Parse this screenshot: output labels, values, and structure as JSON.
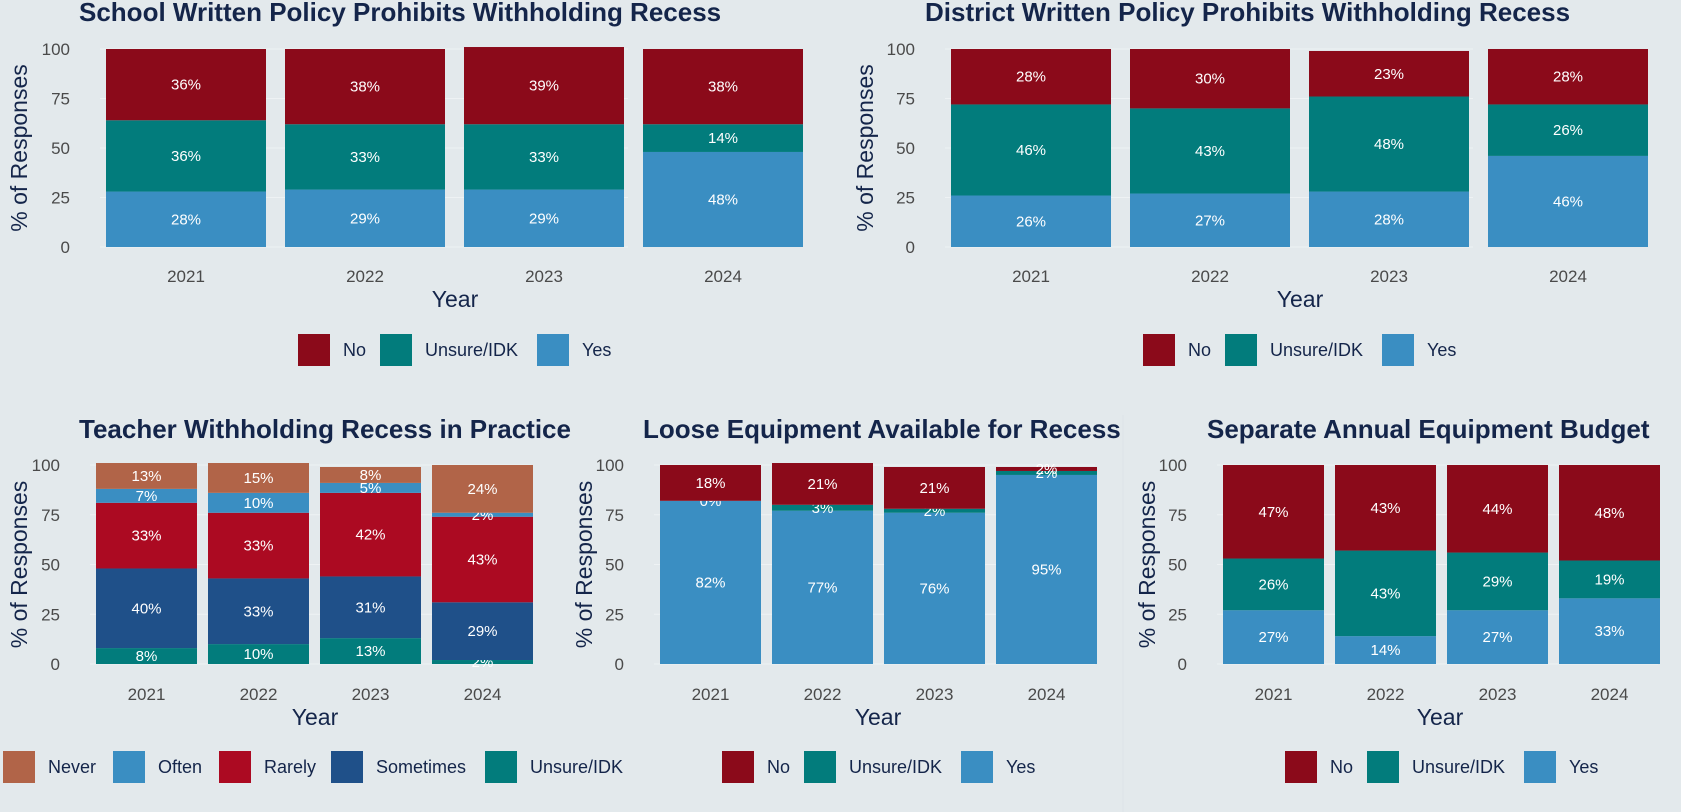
{
  "colors": {
    "No": "#8b0a1a",
    "Unsure/IDK": "#027c7c",
    "Yes": "#3a8ec2",
    "Never": "#b16448",
    "Often": "#3a8ec2",
    "Rarely": "#ac0a22",
    "Sometimes": "#1f5089",
    "background": "#e3e9ec",
    "text": "#14254a"
  },
  "chart_data": [
    {
      "type": "bar",
      "stacked": true,
      "title": "School Written Policy Prohibits Withholding Recess",
      "xlabel": "Year",
      "ylabel": "% of Responses",
      "ylim": [
        0,
        100
      ],
      "yticks": [
        "0",
        "25",
        "50",
        "75",
        "100"
      ],
      "categories": [
        "2021",
        "2022",
        "2023",
        "2024"
      ],
      "series": [
        {
          "name": "Yes",
          "values": [
            28,
            29,
            29,
            48
          ],
          "labels": [
            "28%",
            "29%",
            "29%",
            "48%"
          ]
        },
        {
          "name": "Unsure/IDK",
          "values": [
            36,
            33,
            33,
            14
          ],
          "labels": [
            "36%",
            "33%",
            "33%",
            "14%"
          ]
        },
        {
          "name": "No",
          "values": [
            36,
            38,
            39,
            38
          ],
          "labels": [
            "36%",
            "38%",
            "39%",
            "38%"
          ]
        }
      ],
      "legend": [
        "No",
        "Unsure/IDK",
        "Yes"
      ]
    },
    {
      "type": "bar",
      "stacked": true,
      "title": "District Written Policy Prohibits Withholding Recess",
      "xlabel": "Year",
      "ylabel": "% of Responses",
      "ylim": [
        0,
        100
      ],
      "yticks": [
        "0",
        "25",
        "50",
        "75",
        "100"
      ],
      "categories": [
        "2021",
        "2022",
        "2023",
        "2024"
      ],
      "series": [
        {
          "name": "Yes",
          "values": [
            26,
            27,
            28,
            46
          ],
          "labels": [
            "26%",
            "27%",
            "28%",
            "46%"
          ]
        },
        {
          "name": "Unsure/IDK",
          "values": [
            46,
            43,
            48,
            26
          ],
          "labels": [
            "46%",
            "43%",
            "48%",
            "26%"
          ]
        },
        {
          "name": "No",
          "values": [
            28,
            30,
            23,
            28
          ],
          "labels": [
            "28%",
            "30%",
            "23%",
            "28%"
          ]
        }
      ],
      "legend": [
        "No",
        "Unsure/IDK",
        "Yes"
      ]
    },
    {
      "type": "bar",
      "stacked": true,
      "title": "Teacher Withholding Recess in Practice",
      "xlabel": "Year",
      "ylabel": "% of Responses",
      "ylim": [
        0,
        100
      ],
      "yticks": [
        "0",
        "25",
        "50",
        "75",
        "100"
      ],
      "categories": [
        "2021",
        "2022",
        "2023",
        "2024"
      ],
      "series": [
        {
          "name": "Unsure/IDK",
          "values": [
            8,
            10,
            13,
            2
          ],
          "labels": [
            "8%",
            "10%",
            "13%",
            "2%"
          ]
        },
        {
          "name": "Sometimes",
          "values": [
            40,
            33,
            31,
            29
          ],
          "labels": [
            "40%",
            "33%",
            "31%",
            "29%"
          ]
        },
        {
          "name": "Rarely",
          "values": [
            33,
            33,
            42,
            43
          ],
          "labels": [
            "33%",
            "33%",
            "42%",
            "43%"
          ]
        },
        {
          "name": "Often",
          "values": [
            7,
            10,
            5,
            2
          ],
          "labels": [
            "7%",
            "10%",
            "5%",
            "2%"
          ]
        },
        {
          "name": "Never",
          "values": [
            13,
            15,
            8,
            24
          ],
          "labels": [
            "13%",
            "15%",
            "8%",
            "24%"
          ]
        }
      ],
      "legend": [
        "Never",
        "Often",
        "Rarely",
        "Sometimes",
        "Unsure/IDK"
      ]
    },
    {
      "type": "bar",
      "stacked": true,
      "title": "Loose Equipment Available for Recess",
      "xlabel": "Year",
      "ylabel": "% of Responses",
      "ylim": [
        0,
        100
      ],
      "yticks": [
        "0",
        "25",
        "50",
        "75",
        "100"
      ],
      "categories": [
        "2021",
        "2022",
        "2023",
        "2024"
      ],
      "series": [
        {
          "name": "Yes",
          "values": [
            82,
            77,
            76,
            95
          ],
          "labels": [
            "82%",
            "77%",
            "76%",
            "95%"
          ]
        },
        {
          "name": "Unsure/IDK",
          "values": [
            0,
            3,
            2,
            2
          ],
          "labels": [
            "0%",
            "3%",
            "2%",
            "2%"
          ]
        },
        {
          "name": "No",
          "values": [
            18,
            21,
            21,
            2
          ],
          "labels": [
            "18%",
            "21%",
            "21%",
            "2%"
          ]
        }
      ],
      "legend": [
        "No",
        "Unsure/IDK",
        "Yes"
      ]
    },
    {
      "type": "bar",
      "stacked": true,
      "title": "Separate Annual Equipment Budget",
      "xlabel": "Year",
      "ylabel": "% of Responses",
      "ylim": [
        0,
        100
      ],
      "yticks": [
        "0",
        "25",
        "50",
        "75",
        "100"
      ],
      "categories": [
        "2021",
        "2022",
        "2023",
        "2024"
      ],
      "series": [
        {
          "name": "Yes",
          "values": [
            27,
            14,
            27,
            33
          ],
          "labels": [
            "27%",
            "14%",
            "27%",
            "33%"
          ]
        },
        {
          "name": "Unsure/IDK",
          "values": [
            26,
            43,
            29,
            19
          ],
          "labels": [
            "26%",
            "43%",
            "29%",
            "19%"
          ]
        },
        {
          "name": "No",
          "values": [
            47,
            43,
            44,
            48
          ],
          "labels": [
            "47%",
            "43%",
            "44%",
            "48%"
          ]
        }
      ],
      "legend": [
        "No",
        "Unsure/IDK",
        "Yes"
      ]
    }
  ]
}
